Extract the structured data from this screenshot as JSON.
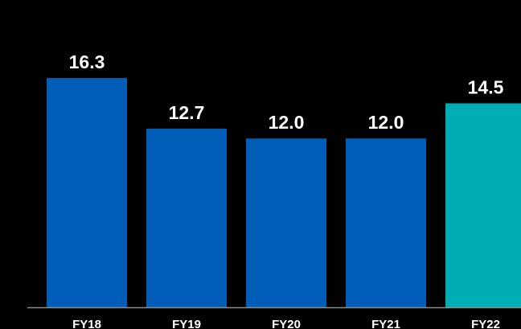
{
  "chart_data": {
    "type": "bar",
    "title": "",
    "xlabel": "",
    "ylabel": "",
    "categories": [
      "FY18",
      "FY19",
      "FY20",
      "FY21",
      "FY22"
    ],
    "values": [
      16.3,
      12.7,
      12.0,
      12.0,
      14.5
    ],
    "value_labels": [
      "16.3",
      "12.7",
      "12.0",
      "12.0",
      "14.5"
    ],
    "ylim": [
      0,
      16.3
    ],
    "grid": false,
    "legend": "none",
    "colors": {
      "background": "#000000",
      "bar": "#005eb8",
      "highlight_bar": "#00adb5",
      "text": "#ffffff",
      "axis": "#8c8c8c"
    },
    "highlight_index": 4
  }
}
